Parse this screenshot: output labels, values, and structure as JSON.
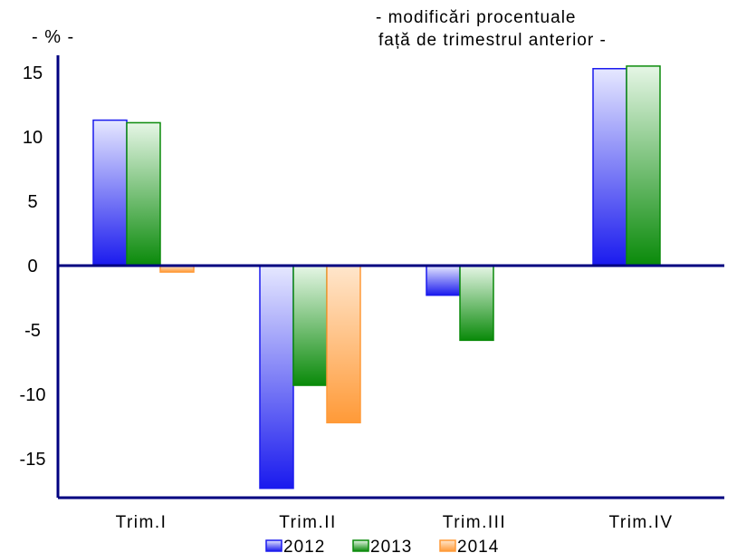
{
  "chart_data": {
    "type": "bar",
    "annotation_lines": [
      "- modificări procentuale",
      "față de trimestrul anterior -"
    ],
    "unit_label": "- % -",
    "categories": [
      "Trim.I",
      "Trim.II",
      "Trim.III",
      "Trim.IV"
    ],
    "series": [
      {
        "name": "2012",
        "values": [
          11.3,
          -17.3,
          -2.3,
          15.3
        ],
        "color": "#1a1aee",
        "color_light": "#e6e8ff"
      },
      {
        "name": "2013",
        "values": [
          11.1,
          -9.3,
          -5.8,
          15.5
        ],
        "color": "#0a8a0a",
        "color_light": "#e6f6e6"
      },
      {
        "name": "2014",
        "values": [
          -0.5,
          -12.2,
          null,
          null
        ],
        "color": "#ff9a38",
        "color_light": "#ffe6cc"
      }
    ],
    "ylim": [
      -18,
      16
    ],
    "yticks": [
      15,
      10,
      5,
      0,
      -5,
      -10,
      -15
    ],
    "grid": false,
    "legend_position": "bottom"
  }
}
